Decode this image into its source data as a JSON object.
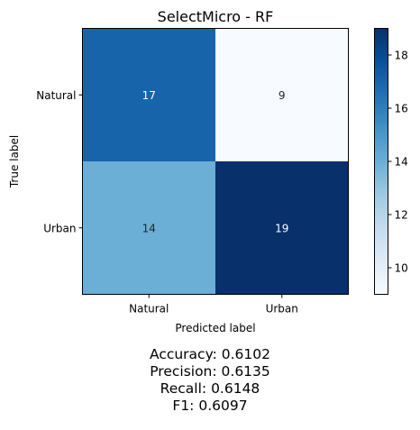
{
  "chart_data": {
    "type": "heatmap",
    "title": "SelectMicro - RF",
    "xlabel": "Predicted label",
    "ylabel": "True label",
    "x_categories": [
      "Natural",
      "Urban"
    ],
    "y_categories": [
      "Natural",
      "Urban"
    ],
    "values": [
      [
        17,
        9
      ],
      [
        14,
        19
      ]
    ],
    "colormap": "Blues",
    "colorbar": {
      "min": 9,
      "max": 19,
      "ticks": [
        10,
        12,
        14,
        16,
        18
      ]
    },
    "text_colors": {
      "light_cell": "#262626",
      "dark_cell": "#ffffff"
    },
    "grid": false
  },
  "metrics": [
    "Accuracy: 0.6102",
    "Precision: 0.6135",
    "Recall: 0.6148",
    "F1: 0.6097"
  ]
}
